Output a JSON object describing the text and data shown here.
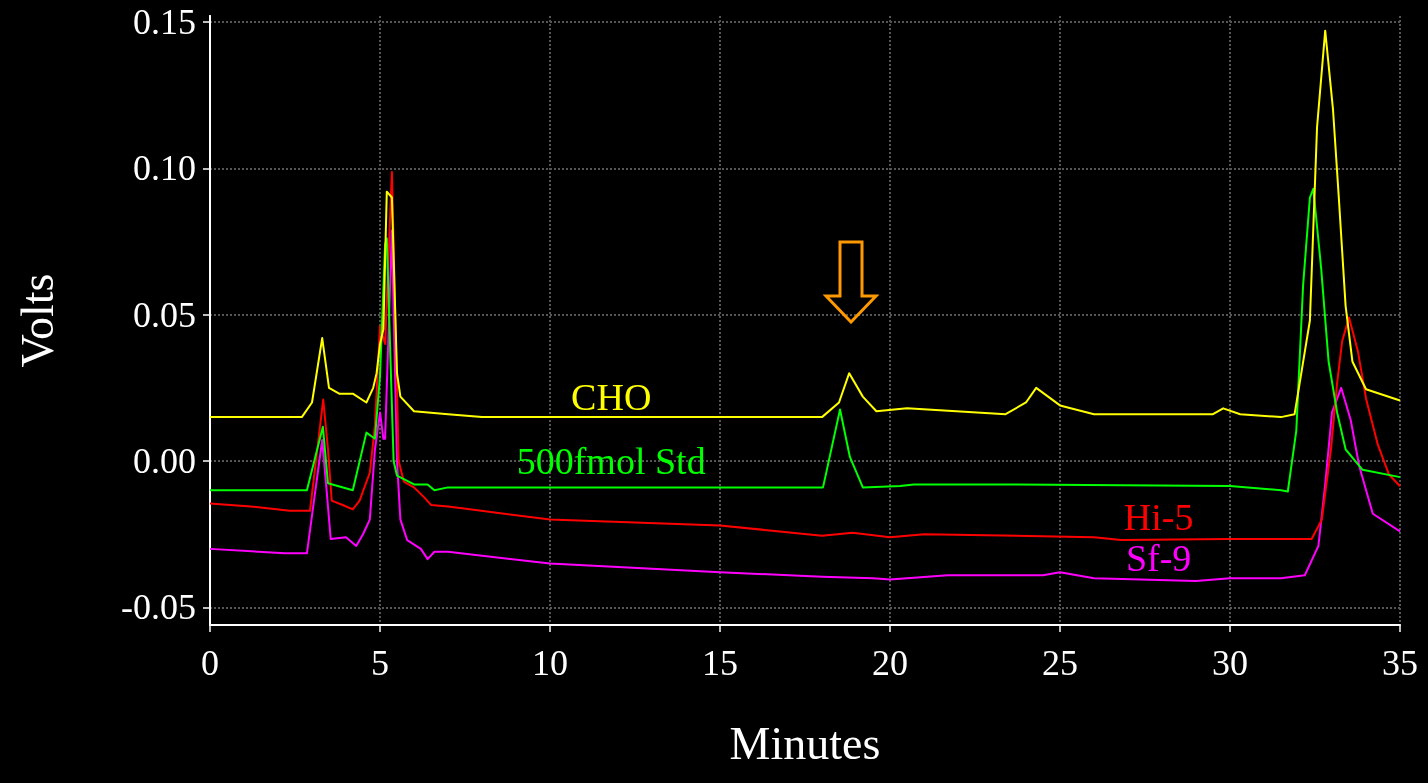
{
  "chart_data": {
    "type": "line",
    "xlabel": "Minutes",
    "ylabel": "Volts",
    "xlim": [
      0,
      35
    ],
    "xticks": [
      0,
      5,
      10,
      15,
      20,
      25,
      30,
      35
    ],
    "ylim": [
      -0.056,
      0.152
    ],
    "yticks": [
      {
        "value": -0.05,
        "label": "-0.05"
      },
      {
        "value": 0,
        "label": "0.00"
      },
      {
        "value": 0.05,
        "label": "0.05"
      },
      {
        "value": 0.1,
        "label": "0.10"
      },
      {
        "value": 0.15,
        "label": "0.15"
      }
    ],
    "grid": true,
    "legend": false,
    "marker": "none",
    "line_style": "solid",
    "series": [
      {
        "name": "CHO",
        "color": "#ffff00",
        "x": [
          0,
          2.7,
          3.0,
          3.3,
          3.5,
          3.8,
          4.2,
          4.6,
          4.8,
          4.9,
          5.0,
          5.1,
          5.2,
          5.35,
          5.5,
          5.6,
          6,
          7,
          8,
          18,
          18.5,
          18.8,
          19.2,
          19.6,
          20.5,
          23.4,
          24.0,
          24.3,
          25,
          26,
          29.5,
          29.8,
          30.3,
          31.5,
          31.9,
          32.35,
          32.56,
          32.8,
          33.03,
          33.2,
          33.4,
          33.6,
          34.0,
          35
        ],
        "values": [
          0.015,
          0.015,
          0.02,
          0.042,
          0.025,
          0.023,
          0.023,
          0.02,
          0.025,
          0.03,
          0.04,
          0.045,
          0.092,
          0.09,
          0.03,
          0.022,
          0.017,
          0.016,
          0.015,
          0.015,
          0.02,
          0.03,
          0.022,
          0.017,
          0.018,
          0.016,
          0.02,
          0.025,
          0.019,
          0.016,
          0.016,
          0.018,
          0.016,
          0.015,
          0.016,
          0.048,
          0.114,
          0.147,
          0.12,
          0.09,
          0.053,
          0.034,
          0.0245,
          0.0207
        ]
      },
      {
        "name": "500fmol Std",
        "color": "#00ff00",
        "x": [
          0,
          2.85,
          3.32,
          3.47,
          4.2,
          4.6,
          4.85,
          5.0,
          5.15,
          5.2,
          5.4,
          5.5,
          6.0,
          6.4,
          6.6,
          7,
          18.03,
          18.53,
          18.82,
          19.2,
          20.3,
          20.7,
          23,
          30,
          31.5,
          31.7,
          31.95,
          32.15,
          32.35,
          32.45,
          32.68,
          32.9,
          33.15,
          33.4,
          33.9,
          35
        ],
        "values": [
          -0.01,
          -0.01,
          0.0117,
          -0.0076,
          -0.01,
          0.0097,
          0.0076,
          0.029,
          0.074,
          0.076,
          0.0,
          -0.005,
          -0.008,
          -0.008,
          -0.01,
          -0.009,
          -0.009,
          0.0176,
          0.0014,
          -0.009,
          -0.0085,
          -0.008,
          -0.008,
          -0.0085,
          -0.01,
          -0.0104,
          0.0104,
          0.06,
          0.09,
          0.093,
          0.066,
          0.034,
          0.0166,
          0.004,
          -0.003,
          -0.0055
        ]
      },
      {
        "name": "Hi-5",
        "color": "#ff0000",
        "x": [
          0,
          1.2,
          2.35,
          2.94,
          3.33,
          3.47,
          3.58,
          3.9,
          4.2,
          4.4,
          4.7,
          4.85,
          5.0,
          5.15,
          5.35,
          5.45,
          5.55,
          5.7,
          6.0,
          6.3,
          6.5,
          7,
          10,
          15,
          18,
          18.9,
          20,
          21,
          26,
          26.8,
          30,
          32.4,
          32.7,
          32.97,
          33.15,
          33.3,
          33.5,
          33.76,
          34.0,
          34.35,
          34.67,
          35
        ],
        "values": [
          -0.0145,
          -0.0155,
          -0.017,
          -0.017,
          0.021,
          0.004,
          -0.0135,
          -0.015,
          -0.0165,
          -0.0135,
          -0.004,
          0.012,
          0.046,
          0.04,
          0.0987,
          0.049,
          0.0,
          -0.007,
          -0.009,
          -0.0124,
          -0.015,
          -0.0155,
          -0.02,
          -0.022,
          -0.0255,
          -0.0245,
          -0.026,
          -0.025,
          -0.026,
          -0.027,
          -0.0266,
          -0.0266,
          -0.02,
          0.004,
          0.0266,
          0.041,
          0.049,
          0.0376,
          0.0214,
          0.0055,
          -0.0045,
          -0.0086
        ]
      },
      {
        "name": "Sf-9",
        "color": "#ff00ff",
        "x": [
          0,
          2.2,
          2.85,
          3.3,
          3.43,
          3.55,
          4.0,
          4.3,
          4.5,
          4.7,
          4.85,
          5.0,
          5.1,
          5.15,
          5.35,
          5.5,
          5.6,
          5.8,
          6.2,
          6.4,
          6.6,
          7,
          10,
          15,
          18,
          19.5,
          20,
          21.7,
          24.5,
          25,
          26,
          29,
          30,
          31.5,
          32.2,
          32.6,
          32.8,
          33.0,
          33.27,
          33.55,
          33.8,
          34.2,
          35
        ],
        "values": [
          -0.03,
          -0.0315,
          -0.0315,
          0.0072,
          -0.01,
          -0.0266,
          -0.026,
          -0.029,
          -0.025,
          -0.02,
          0.0038,
          0.0166,
          0.0076,
          0.0076,
          0.0787,
          0.0,
          -0.02,
          -0.027,
          -0.03,
          -0.0335,
          -0.031,
          -0.031,
          -0.035,
          -0.038,
          -0.0395,
          -0.04,
          -0.0405,
          -0.039,
          -0.039,
          -0.038,
          -0.04,
          -0.041,
          -0.04,
          -0.04,
          -0.039,
          -0.029,
          -0.008,
          0.0166,
          0.025,
          0.014,
          -0.0017,
          -0.018,
          -0.024
        ]
      }
    ]
  }
}
